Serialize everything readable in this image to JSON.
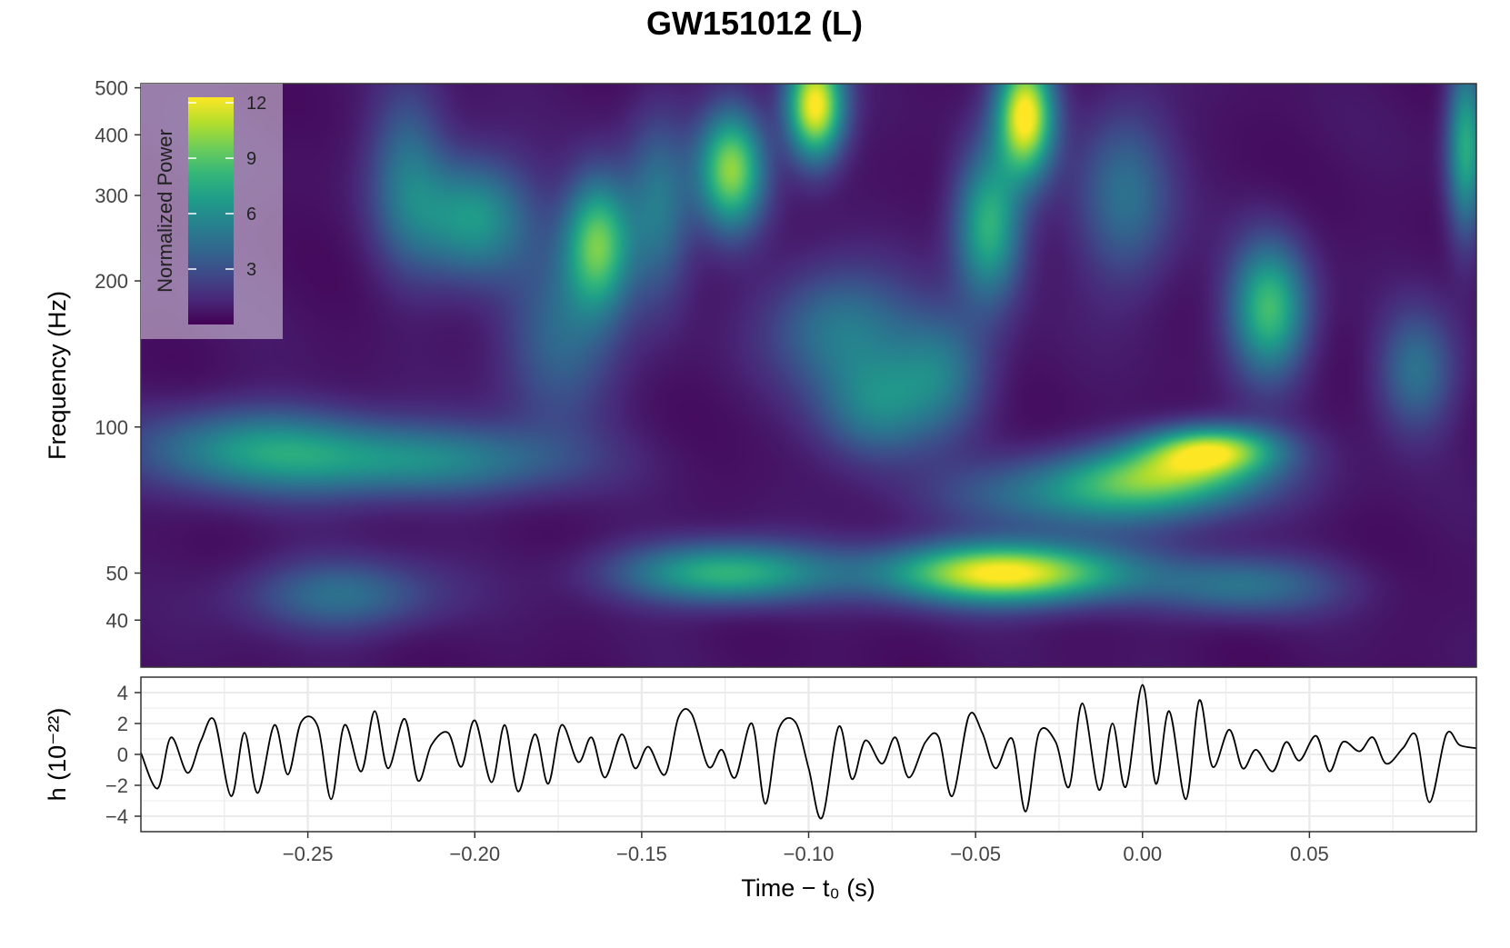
{
  "chart_data": [
    {
      "type": "heatmap",
      "title": "GW151012 (L)",
      "ylabel": "Frequency (Hz)",
      "xlabel": "",
      "x_range": [
        -0.3,
        0.1
      ],
      "y_range": [
        32,
        510
      ],
      "y_scale": "log",
      "y_ticks": [
        {
          "value": 40,
          "label": "40"
        },
        {
          "value": 50,
          "label": "50"
        },
        {
          "value": 100,
          "label": "100"
        },
        {
          "value": 200,
          "label": "200"
        },
        {
          "value": 300,
          "label": "300"
        },
        {
          "value": 400,
          "label": "400"
        },
        {
          "value": 500,
          "label": "500"
        }
      ],
      "colorbar": {
        "label": "Normalized Power",
        "range": [
          0,
          12.3
        ],
        "ticks": [
          {
            "value": 3,
            "label": "3"
          },
          {
            "value": 6,
            "label": "6"
          },
          {
            "value": 9,
            "label": "9"
          },
          {
            "value": 12,
            "label": "12"
          }
        ],
        "colormap": "viridis",
        "placement": "top-left"
      },
      "peaks": [
        {
          "t": -0.041,
          "f": 50,
          "power": 12.2,
          "wt": 0.025,
          "wf": 0.1
        },
        {
          "t": -0.125,
          "f": 50,
          "power": 7.5,
          "wt": 0.022,
          "wf": 0.1
        },
        {
          "t": 0.021,
          "f": 90,
          "power": 9.2,
          "wt": 0.014,
          "wf": 0.08
        },
        {
          "t": 0.008,
          "f": 80,
          "power": 6.5,
          "wt": 0.02,
          "wf": 0.1
        },
        {
          "t": -0.015,
          "f": 72,
          "power": 5.0,
          "wt": 0.03,
          "wf": 0.12
        },
        {
          "t": -0.215,
          "f": 85,
          "power": 5.0,
          "wt": 0.03,
          "wf": 0.12
        },
        {
          "t": -0.265,
          "f": 90,
          "power": 5.5,
          "wt": 0.025,
          "wf": 0.14
        },
        {
          "t": -0.098,
          "f": 460,
          "power": 12.0,
          "wt": 0.006,
          "wf": 0.18
        },
        {
          "t": -0.035,
          "f": 440,
          "power": 12.0,
          "wt": 0.006,
          "wf": 0.2
        },
        {
          "t": -0.123,
          "f": 340,
          "power": 9.5,
          "wt": 0.007,
          "wf": 0.2
        },
        {
          "t": -0.163,
          "f": 240,
          "power": 8.5,
          "wt": 0.007,
          "wf": 0.22
        },
        {
          "t": 0.038,
          "f": 175,
          "power": 8.0,
          "wt": 0.008,
          "wf": 0.22
        },
        {
          "t": -0.046,
          "f": 260,
          "power": 7.5,
          "wt": 0.007,
          "wf": 0.25
        },
        {
          "t": -0.2,
          "f": 270,
          "power": 6.0,
          "wt": 0.012,
          "wf": 0.2
        },
        {
          "t": 0.097,
          "f": 380,
          "power": 7.0,
          "wt": 0.004,
          "wf": 0.3
        },
        {
          "t": -0.09,
          "f": 160,
          "power": 4.5,
          "wt": 0.015,
          "wf": 0.2
        },
        {
          "t": -0.08,
          "f": 110,
          "power": 4.5,
          "wt": 0.012,
          "wf": 0.18
        },
        {
          "t": -0.24,
          "f": 45,
          "power": 4.0,
          "wt": 0.02,
          "wf": 0.12
        },
        {
          "t": 0.03,
          "f": 47,
          "power": 4.0,
          "wt": 0.02,
          "wf": 0.1
        },
        {
          "t": -0.22,
          "f": 330,
          "power": 4.0,
          "wt": 0.008,
          "wf": 0.3
        },
        {
          "t": -0.145,
          "f": 280,
          "power": 4.5,
          "wt": 0.007,
          "wf": 0.3
        },
        {
          "t": -0.005,
          "f": 300,
          "power": 4.0,
          "wt": 0.01,
          "wf": 0.3
        },
        {
          "t": 0.082,
          "f": 130,
          "power": 4.0,
          "wt": 0.008,
          "wf": 0.2
        },
        {
          "t": -0.175,
          "f": 150,
          "power": 3.5,
          "wt": 0.012,
          "wf": 0.3
        },
        {
          "t": -0.06,
          "f": 130,
          "power": 4.0,
          "wt": 0.01,
          "wf": 0.2
        }
      ]
    },
    {
      "type": "line",
      "xlabel": "Time − t₀ (s)",
      "ylabel": "h (10⁻²²)",
      "x_range": [
        -0.3,
        0.1
      ],
      "y_range": [
        -5,
        5
      ],
      "grid": true,
      "x_ticks": [
        {
          "value": -0.25,
          "label": "−0.25"
        },
        {
          "value": -0.2,
          "label": "−0.20"
        },
        {
          "value": -0.15,
          "label": "−0.15"
        },
        {
          "value": -0.1,
          "label": "−0.10"
        },
        {
          "value": -0.05,
          "label": "−0.05"
        },
        {
          "value": 0.0,
          "label": "0.00"
        },
        {
          "value": 0.05,
          "label": "0.05"
        }
      ],
      "y_ticks": [
        {
          "value": -4,
          "label": "−4"
        },
        {
          "value": -2,
          "label": "−2"
        },
        {
          "value": 0,
          "label": "0"
        },
        {
          "value": 2,
          "label": "2"
        },
        {
          "value": 4,
          "label": "4"
        }
      ],
      "x": [
        -0.3,
        -0.295,
        -0.291,
        -0.286,
        -0.282,
        -0.278,
        -0.273,
        -0.269,
        -0.265,
        -0.26,
        -0.256,
        -0.252,
        -0.247,
        -0.243,
        -0.239,
        -0.234,
        -0.23,
        -0.226,
        -0.221,
        -0.217,
        -0.213,
        -0.208,
        -0.204,
        -0.2,
        -0.195,
        -0.191,
        -0.187,
        -0.182,
        -0.178,
        -0.174,
        -0.169,
        -0.165,
        -0.161,
        -0.156,
        -0.152,
        -0.148,
        -0.143,
        -0.139,
        -0.135,
        -0.13,
        -0.126,
        -0.122,
        -0.117,
        -0.113,
        -0.109,
        -0.104,
        -0.1,
        -0.096,
        -0.091,
        -0.087,
        -0.083,
        -0.078,
        -0.074,
        -0.07,
        -0.065,
        -0.061,
        -0.057,
        -0.052,
        -0.048,
        -0.044,
        -0.039,
        -0.035,
        -0.031,
        -0.026,
        -0.022,
        -0.018,
        -0.013,
        -0.009,
        -0.005,
        0.0,
        0.004,
        0.008,
        0.013,
        0.017,
        0.021,
        0.026,
        0.03,
        0.034,
        0.039,
        0.043,
        0.047,
        0.052,
        0.056,
        0.06,
        0.065,
        0.069,
        0.073,
        0.078,
        0.082,
        0.086,
        0.091,
        0.095,
        0.1
      ],
      "y": [
        0.1,
        -2.2,
        1.1,
        -1.2,
        0.9,
        2.2,
        -2.7,
        1.4,
        -2.5,
        1.9,
        -1.3,
        2.1,
        1.8,
        -2.9,
        1.9,
        -1.1,
        2.8,
        -0.9,
        2.3,
        -1.7,
        0.6,
        1.4,
        -0.8,
        2.2,
        -1.8,
        1.9,
        -2.4,
        1.3,
        -1.9,
        1.9,
        -0.5,
        1.1,
        -1.5,
        1.3,
        -0.9,
        0.5,
        -1.3,
        2.4,
        2.6,
        -0.8,
        0.3,
        -1.5,
        2.0,
        -3.2,
        1.6,
        2.1,
        -0.9,
        -4.1,
        1.8,
        -1.6,
        0.9,
        -0.6,
        1.1,
        -1.5,
        0.8,
        1.1,
        -2.7,
        2.5,
        1.4,
        -0.9,
        1.0,
        -3.7,
        1.4,
        0.8,
        -2.1,
        3.3,
        -2.3,
        2.0,
        -2.1,
        4.5,
        -1.9,
        2.8,
        -2.9,
        3.5,
        -0.8,
        1.6,
        -0.9,
        0.3,
        -1.1,
        0.8,
        -0.4,
        1.2,
        -1.1,
        0.8,
        0.2,
        1.1,
        -0.6,
        0.4,
        1.2,
        -3.1,
        1.3,
        0.6,
        0.4
      ]
    }
  ]
}
